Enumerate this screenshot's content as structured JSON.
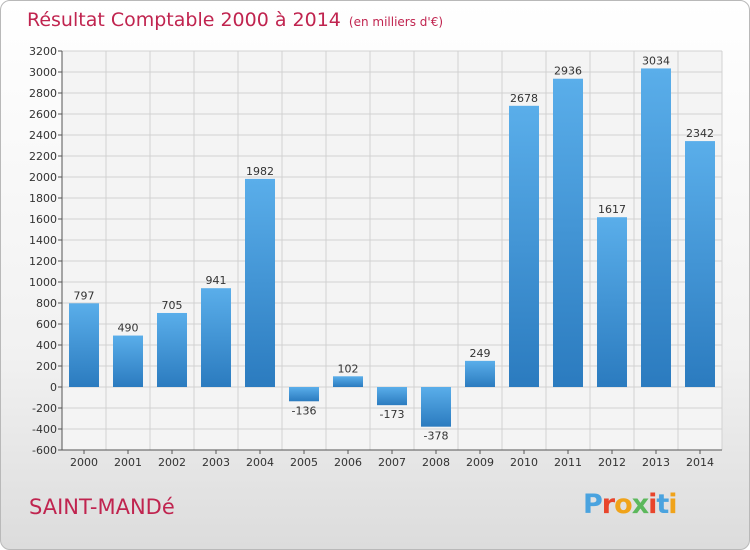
{
  "title": "Résultat Comptable 2000 à 2014",
  "unit": "(en milliers d'€)",
  "commune": "SAINT-MANDé",
  "logo": {
    "letters": [
      "P",
      "r",
      "o",
      "x",
      "i",
      "t",
      "i"
    ],
    "colors": [
      "#4aa3df",
      "#e8452c",
      "#f0a31a",
      "#5cb85c",
      "#e8452c",
      "#4aa3df",
      "#f0a31a"
    ]
  },
  "colors": {
    "bar_top": "#5aaeea",
    "bar_bottom": "#2b7bbf",
    "title": "#c0244f"
  },
  "chart_data": {
    "type": "bar",
    "categories": [
      "2000",
      "2001",
      "2002",
      "2003",
      "2004",
      "2005",
      "2006",
      "2007",
      "2008",
      "2009",
      "2010",
      "2011",
      "2012",
      "2013",
      "2014"
    ],
    "values": [
      797,
      490,
      705,
      941,
      1982,
      -136,
      102,
      -173,
      -378,
      249,
      2678,
      2936,
      1617,
      3034,
      2342
    ],
    "labels": [
      "797",
      "490",
      "705",
      "941",
      "1982",
      "-136",
      "102",
      "-173",
      "-378",
      "249",
      "2678",
      "2936",
      "1617",
      "3034",
      "2342"
    ],
    "yticks": [
      -600,
      -400,
      -200,
      0,
      200,
      400,
      600,
      800,
      1000,
      1200,
      1400,
      1600,
      1800,
      2000,
      2200,
      2400,
      2600,
      2800,
      3000,
      3200
    ],
    "ylim": [
      -600,
      3200
    ],
    "grid": true
  }
}
